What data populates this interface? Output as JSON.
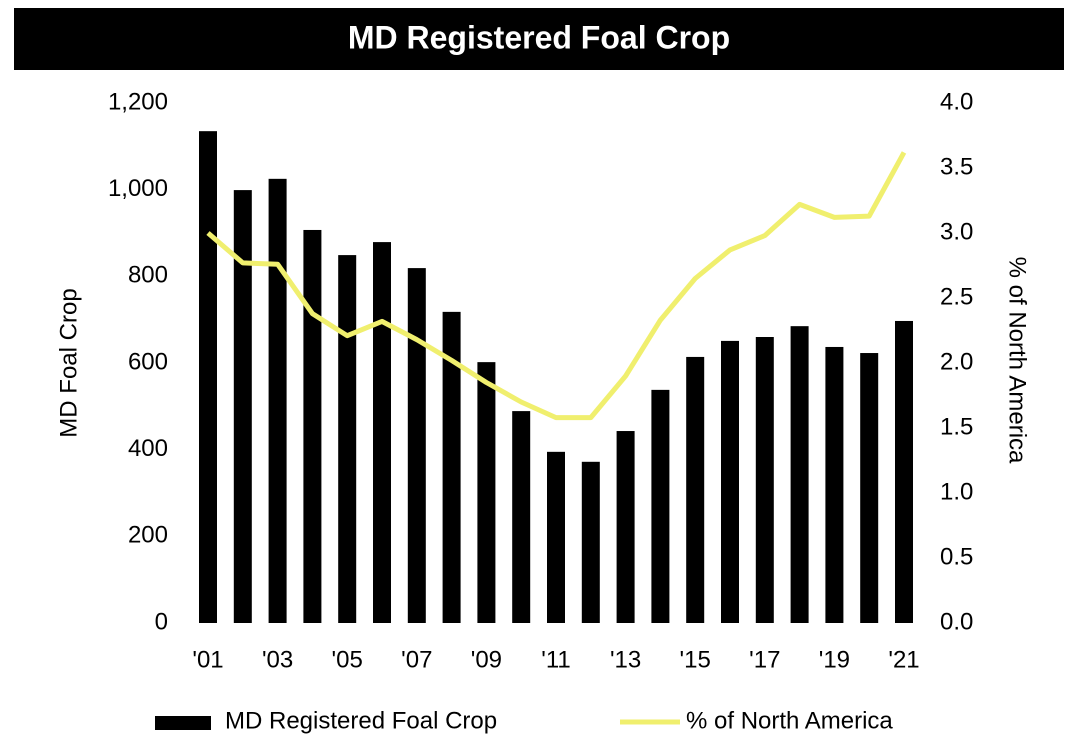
{
  "chart_data": {
    "type": "bar_line",
    "title": "MD Registered Foal Crop",
    "ylabel": "MD Foal Crop",
    "y2label": "% of North America",
    "categories": [
      "'01",
      null,
      "'03",
      null,
      "'05",
      null,
      "'07",
      null,
      "'09",
      null,
      "'11",
      null,
      "'13",
      null,
      "'15",
      null,
      "'17",
      null,
      "'19",
      null,
      "'21"
    ],
    "series": [
      {
        "name": "MD Registered Foal Crop",
        "color": "#000000",
        "type": "bar",
        "values": [
          1135,
          999,
          1025,
          907,
          849,
          879,
          819,
          718,
          602,
          489,
          395,
          372,
          443,
          538,
          614,
          651,
          660,
          685,
          637,
          623,
          697
        ]
      },
      {
        "name": "% of North America",
        "color": "#f0ef6e",
        "type": "line",
        "axis": "y2",
        "values": [
          3.0,
          2.77,
          2.76,
          2.38,
          2.21,
          2.32,
          2.18,
          2.02,
          1.85,
          1.7,
          1.58,
          1.58,
          1.9,
          2.33,
          2.65,
          2.87,
          2.98,
          3.22,
          3.12,
          3.13,
          3.62
        ]
      }
    ],
    "ylim": [
      0,
      1200
    ],
    "yticks": [
      0,
      200,
      400,
      600,
      800,
      {
        "value": 1000,
        "label": "1,000"
      },
      {
        "value": 1200,
        "label": "1,200"
      }
    ],
    "y2lim": [
      0,
      4
    ],
    "y2ticks": [
      {
        "value": 0,
        "label": "0.0"
      },
      0.5,
      {
        "value": 1,
        "label": "1.0"
      },
      1.5,
      {
        "value": 2,
        "label": "2.0"
      },
      2.5,
      {
        "value": 3,
        "label": "3.0"
      },
      3.5,
      {
        "value": 4,
        "label": "4.0"
      }
    ],
    "grid": false,
    "legend": "bottom"
  }
}
